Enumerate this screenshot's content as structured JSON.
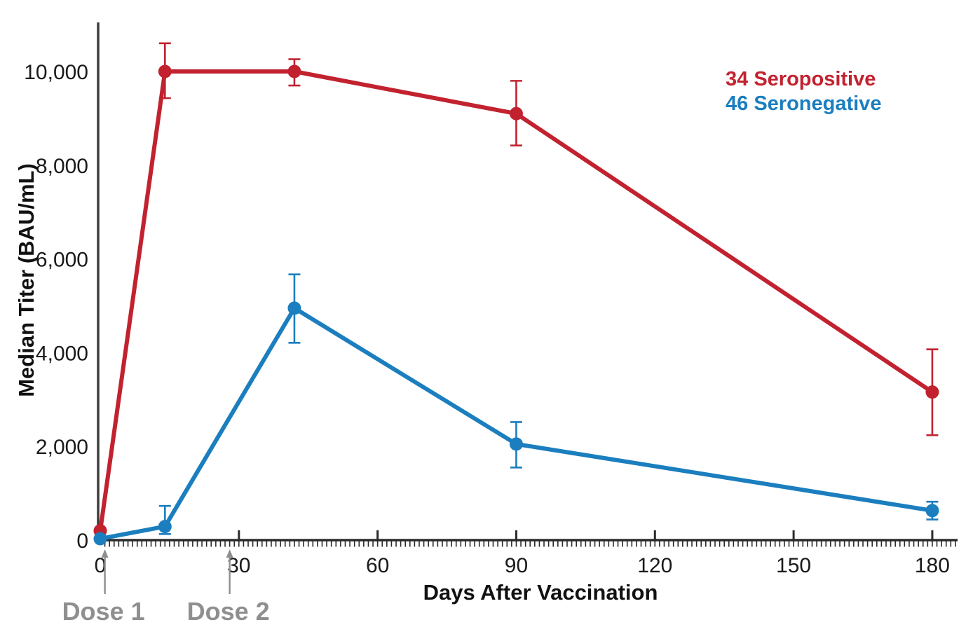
{
  "chart_data": {
    "type": "line",
    "title": "",
    "xlabel": "Days After Vaccination",
    "ylabel": "Median Titer (BAU/mL)",
    "xlim": [
      0,
      185
    ],
    "ylim": [
      0,
      11000
    ],
    "grid": false,
    "legend_position": "top-right",
    "x_major_ticks": [
      0,
      30,
      60,
      90,
      120,
      150,
      180
    ],
    "x_tick_labels": [
      "0",
      "30",
      "60",
      "90",
      "120",
      "150",
      "180"
    ],
    "x_minor_tick_interval_days": 1,
    "y_ticks": [
      0,
      2000,
      4000,
      6000,
      8000,
      10000
    ],
    "y_tick_labels": [
      "0",
      "2,000",
      "4,000",
      "6,000",
      "8,000",
      "10,000"
    ],
    "series": [
      {
        "name": "34 Seropositive",
        "color": "#c2222f",
        "x": [
          0,
          14,
          42,
          90,
          180
        ],
        "y": [
          200,
          10000,
          10000,
          9100,
          3160
        ],
        "err_low": [
          null,
          9430,
          9700,
          8420,
          2240
        ],
        "err_high": [
          null,
          10600,
          10260,
          9800,
          4070
        ]
      },
      {
        "name": "46 Seronegative",
        "color": "#1b7ebf",
        "x": [
          0,
          14,
          42,
          90,
          180
        ],
        "y": [
          30,
          290,
          4950,
          2050,
          630
        ],
        "err_low": [
          null,
          130,
          4210,
          1550,
          440
        ],
        "err_high": [
          null,
          730,
          5670,
          2520,
          820
        ]
      }
    ],
    "annotations": [
      {
        "label": "Dose 1",
        "x_day": 1,
        "color": "#8f8f8f"
      },
      {
        "label": "Dose 2",
        "x_day": 28,
        "color": "#8f8f8f"
      }
    ]
  },
  "axes": {
    "x_title": "Days After Vaccination",
    "y_title": "Median Titer (BAU/mL)",
    "axis_color": "#2b2b2b",
    "tick_label_color": "#1a1a1a"
  }
}
